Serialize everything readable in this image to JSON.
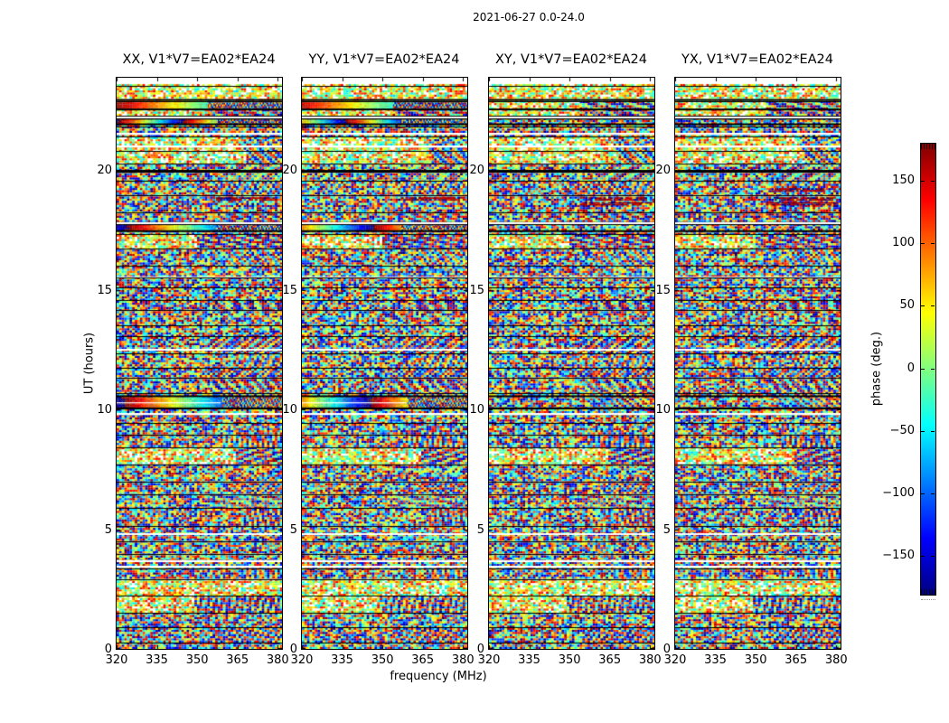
{
  "figure": {
    "title": "2021-06-27 0.0-24.0",
    "xlabel": "frequency (MHz)",
    "ylabel": "UT (hours)"
  },
  "chart_data": {
    "type": "heatmap",
    "title": "2021-06-27 0.0-24.0",
    "description": "Interferometric visibility phase versus frequency and UT time for baseline V1*V7=EA02*EA24 on 2021-06-27, four polarization products. Mostly random phase noise broken by horizontal scan-boundary black lines, occasional white gap rows, a thick black line at 20 h, and smooth wrapped-phase fringe gradients near 10.3 h, 17.6 h and 22.8 h in the parallel-hand (XX, YY) panels.",
    "panels": [
      {
        "id": "XX",
        "label": "XX, V1*V7=EA02*EA24"
      },
      {
        "id": "YY",
        "label": "YY, V1*V7=EA02*EA24"
      },
      {
        "id": "XY",
        "label": "XY, V1*V7=EA02*EA24"
      },
      {
        "id": "YX",
        "label": "YX, V1*V7=EA02*EA24"
      }
    ],
    "x_axis": {
      "label": "frequency (MHz)",
      "range": [
        320,
        381.6
      ],
      "ticks": [
        320,
        335,
        350,
        365,
        380
      ]
    },
    "y_axis": {
      "label": "UT (hours)",
      "range": [
        0,
        24
      ],
      "ticks": [
        0,
        5,
        10,
        15,
        20
      ]
    },
    "colorbar": {
      "label": "phase (deg.)",
      "range": [
        -180,
        180
      ],
      "ticks": [
        150,
        100,
        50,
        0,
        -50,
        -100,
        -150
      ],
      "tick_labels": [
        "150",
        "100",
        "50",
        "0",
        "−50",
        "−100",
        "−150"
      ],
      "colormap": "jet"
    },
    "render": {
      "seed": 42,
      "scan_gap_hours": [
        0.42,
        0.78
      ],
      "thick_line_hour": 20.0,
      "white_lines_hours": [
        22.25,
        21.6,
        21.05,
        17.85,
        15.6,
        12.55,
        9.9,
        4.87,
        3.72,
        3.52
      ],
      "fringes": [
        {
          "t1": 10.12,
          "t2": 10.55,
          "frac": 0.63,
          "wline": true,
          "pp": {
            "XX": [
              -165,
              -2.6
            ],
            "YY": [
              75,
              -3.4
            ]
          }
        },
        {
          "t1": 17.52,
          "t2": 17.78,
          "frac": 0.6,
          "wline": false,
          "pp": {
            "XX": [
              -150,
              -2.7
            ],
            "YY": [
              80,
              -3.3
            ]
          }
        },
        {
          "t1": 22.6,
          "t2": 22.92,
          "frac": 0.55,
          "wline": false,
          "pp": {
            "XX": [
              170,
              -2.0
            ],
            "YY": [
              150,
              -1.9
            ]
          }
        },
        {
          "t1": 21.98,
          "t2": 22.14,
          "frac": 0.6,
          "wline": false,
          "pp": {
            "XX": [
              -170,
              -5.0
            ],
            "YY": [
              60,
              -5.0
            ]
          }
        }
      ],
      "smears": [
        {
          "t": 18.62,
          "x1": 0.55,
          "x2": 0.97,
          "rows": 2,
          "pols": [
            "XY",
            "YX"
          ]
        },
        {
          "t": 18.82,
          "x1": 0.6,
          "x2": 0.95,
          "rows": 2,
          "pols": [
            "XX",
            "YY",
            "XY",
            "YX"
          ]
        },
        {
          "t": 19.2,
          "x1": 0.6,
          "x2": 0.9,
          "rows": 2,
          "pols": [
            "YX"
          ]
        }
      ]
    }
  }
}
